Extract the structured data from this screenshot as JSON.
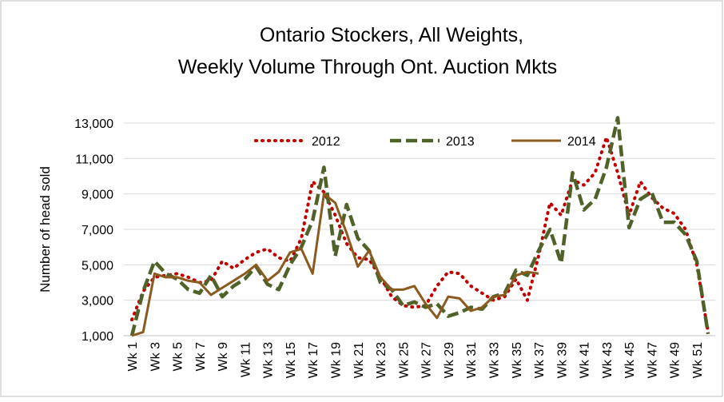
{
  "chart_data": {
    "type": "line",
    "title": [
      "Ontario Stockers, All Weights,",
      "Weekly Volume Through Ont. Auction Mkts"
    ],
    "y_label": "Number of head sold",
    "categories": [
      "Wk 1",
      null,
      "Wk 3",
      null,
      "Wk 5",
      null,
      "Wk 7",
      null,
      "Wk 9",
      null,
      "Wk 11",
      null,
      "Wk 13",
      null,
      "Wk 15",
      null,
      "Wk 17",
      null,
      "Wk 19",
      null,
      "Wk 21",
      null,
      "Wk 23",
      null,
      "Wk 25",
      null,
      "Wk 27",
      null,
      "Wk 29",
      null,
      "Wk 31",
      null,
      "Wk 33",
      null,
      "Wk 35",
      null,
      "Wk 37",
      null,
      "Wk 39",
      null,
      "Wk 41",
      null,
      "Wk 43",
      null,
      "Wk 45",
      null,
      "Wk 47",
      null,
      "Wk 49",
      null,
      "Wk 51",
      null
    ],
    "series": [
      {
        "name": "2012",
        "color": "#c00000",
        "line_style": "dotted",
        "values": [
          1900,
          3500,
          4300,
          4400,
          4500,
          4300,
          4000,
          4100,
          5200,
          4800,
          5300,
          5700,
          5900,
          5400,
          5200,
          6500,
          9700,
          9100,
          7800,
          6200,
          5400,
          5300,
          4300,
          3200,
          2700,
          2600,
          2700,
          3800,
          4600,
          4500,
          3800,
          3400,
          3000,
          3200,
          4200,
          3000,
          5500,
          8500,
          7800,
          9800,
          9500,
          10200,
          12200,
          10200,
          7800,
          9700,
          8800,
          8200,
          7900,
          7000,
          5000,
          1200
        ]
      },
      {
        "name": "2013",
        "color": "#4f6228",
        "line_style": "dashed",
        "values": [
          1000,
          3500,
          5200,
          4500,
          4200,
          3600,
          3400,
          4400,
          3200,
          3800,
          4200,
          4900,
          3900,
          3600,
          5000,
          6000,
          7500,
          10500,
          5500,
          8400,
          6500,
          5800,
          4000,
          3600,
          2700,
          2900,
          2600,
          2800,
          2100,
          2300,
          2600,
          2500,
          3200,
          3400,
          4700,
          4400,
          5800,
          7000,
          5100,
          10200,
          8100,
          8700,
          10500,
          13300,
          7100,
          8700,
          9100,
          7400,
          7400,
          6700,
          5200,
          1100
        ]
      },
      {
        "name": "2014",
        "color": "#8a5a1e",
        "line_style": "solid",
        "values": [
          1000,
          1200,
          4500,
          4300,
          4300,
          4100,
          4000,
          3300,
          3700,
          4100,
          4500,
          5000,
          4100,
          4600,
          5700,
          5900,
          4500,
          9000,
          8500,
          6800,
          4900,
          5800,
          4300,
          3600,
          3600,
          3800,
          2800,
          2000,
          3200,
          3100,
          2400,
          2600,
          3200,
          3300,
          4400,
          4600,
          4500,
          null,
          null,
          null,
          null,
          null,
          null,
          null,
          null,
          null,
          null,
          null,
          null,
          null,
          null,
          null
        ]
      }
    ],
    "ylim": [
      1000,
      13000
    ],
    "yticks": [
      {
        "value": 1000,
        "label": "1,000"
      },
      {
        "value": 3000,
        "label": "3,000"
      },
      {
        "value": 5000,
        "label": "5,000"
      },
      {
        "value": 7000,
        "label": "7,000"
      },
      {
        "value": 9000,
        "label": "9,000"
      },
      {
        "value": 11000,
        "label": "11,000"
      },
      {
        "value": 13000,
        "label": "13,000"
      }
    ],
    "grid": true,
    "legend": "top"
  }
}
